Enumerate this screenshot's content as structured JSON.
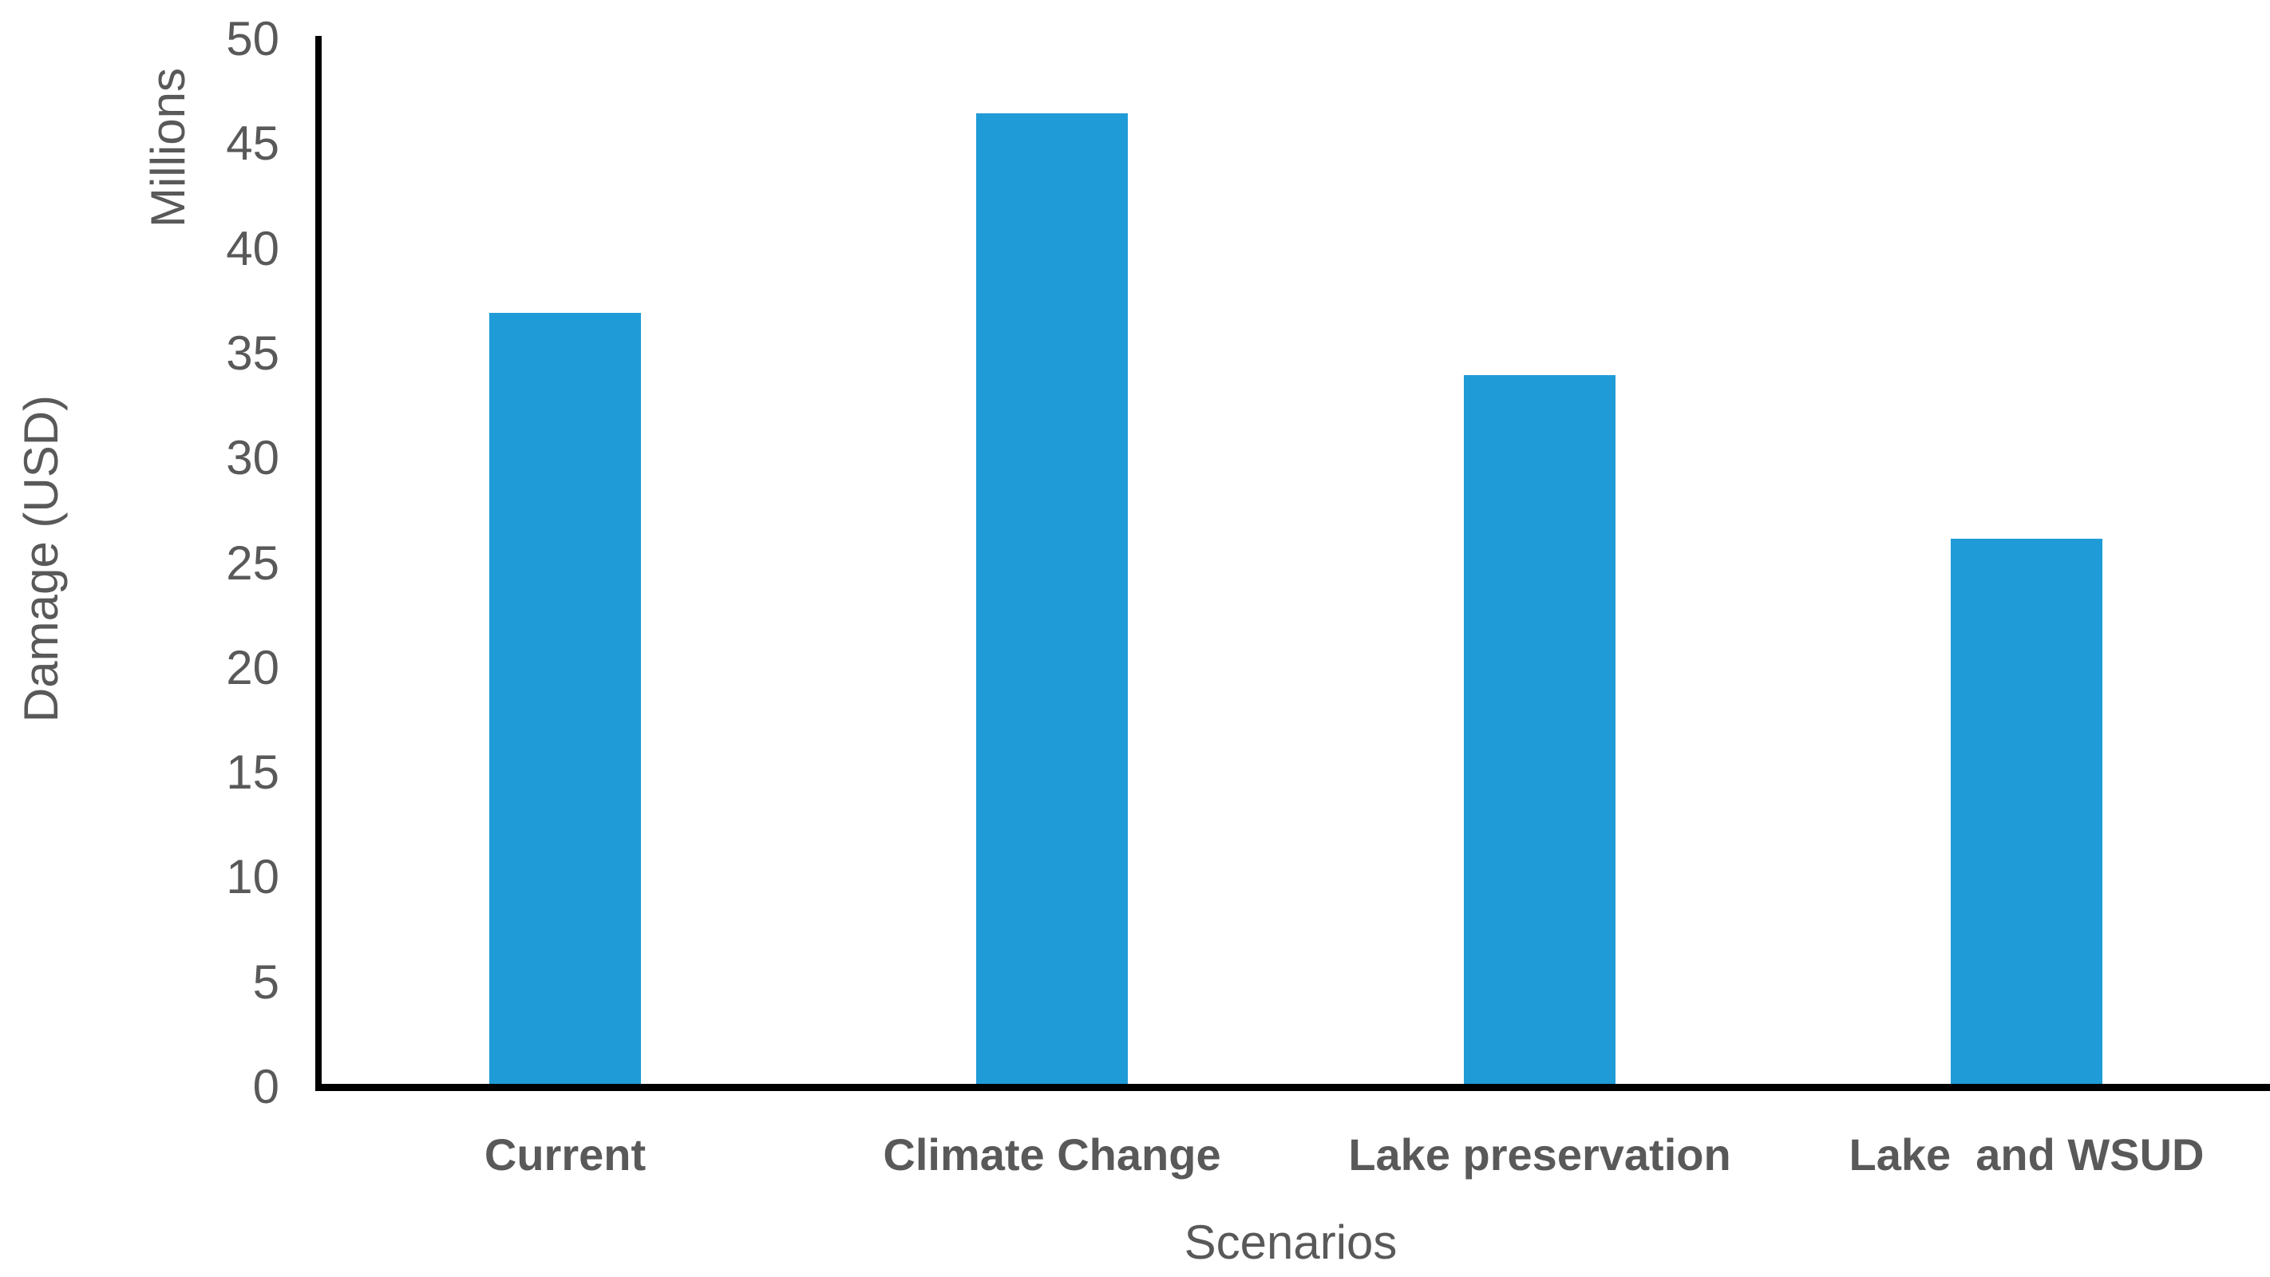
{
  "chart_data": {
    "type": "bar",
    "title": "",
    "categories": [
      "Current",
      "Climate Change",
      "Lake preservation",
      "Lake  and WSUD"
    ],
    "values": [
      36.8,
      46.3,
      33.8,
      26.0
    ],
    "xlabel": "Scenarios",
    "ylabel": "Damage (USD)",
    "ylabel_units": "Millions",
    "ylim": [
      0,
      50
    ],
    "yticks": [
      0,
      5,
      10,
      15,
      20,
      25,
      30,
      35,
      40,
      45,
      50
    ],
    "grid": false,
    "legend": "none",
    "bar_color": "#1F9BD7",
    "axis_color": "#000000",
    "text_color": "#595959"
  }
}
